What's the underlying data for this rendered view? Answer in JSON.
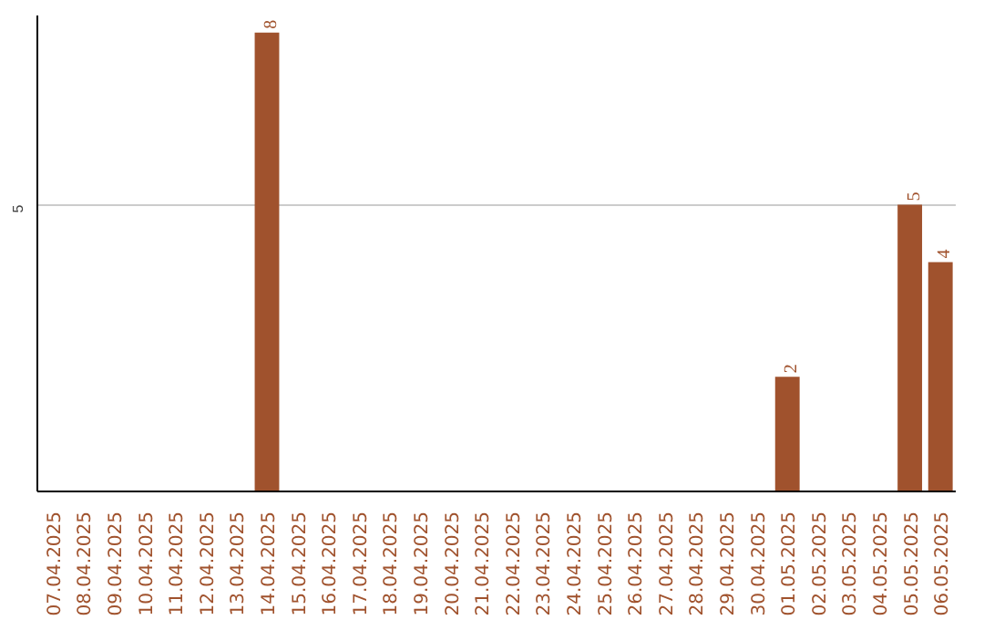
{
  "chart_data": {
    "type": "bar",
    "categories": [
      "07.04.2025",
      "08.04.2025",
      "09.04.2025",
      "10.04.2025",
      "11.04.2025",
      "12.04.2025",
      "13.04.2025",
      "14.04.2025",
      "15.04.2025",
      "16.04.2025",
      "17.04.2025",
      "18.04.2025",
      "19.04.2025",
      "20.04.2025",
      "21.04.2025",
      "22.04.2025",
      "23.04.2025",
      "24.04.2025",
      "25.04.2025",
      "26.04.2025",
      "27.04.2025",
      "28.04.2025",
      "29.04.2025",
      "30.04.2025",
      "01.05.2025",
      "02.05.2025",
      "03.05.2025",
      "04.05.2025",
      "05.05.2025",
      "06.05.2025"
    ],
    "values": [
      0,
      0,
      0,
      0,
      0,
      0,
      0,
      8,
      0,
      0,
      0,
      0,
      0,
      0,
      0,
      0,
      0,
      0,
      0,
      0,
      0,
      0,
      0,
      0,
      2,
      0,
      0,
      0,
      5,
      4
    ],
    "value_labels": [
      null,
      null,
      null,
      null,
      null,
      null,
      null,
      "8",
      null,
      null,
      null,
      null,
      null,
      null,
      null,
      null,
      null,
      null,
      null,
      null,
      null,
      null,
      null,
      null,
      "2",
      null,
      null,
      null,
      "5",
      "4"
    ],
    "color": "#a0522d",
    "ylim": [
      0,
      8.3
    ],
    "yticks": [
      5
    ],
    "grid": "y"
  }
}
